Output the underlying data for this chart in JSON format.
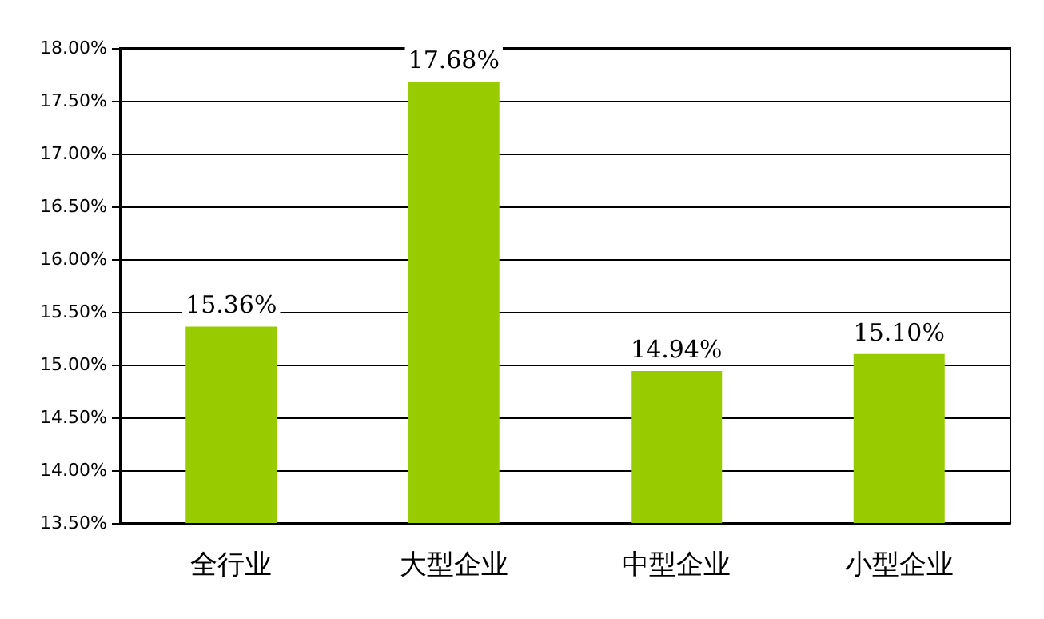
{
  "chart_data": {
    "type": "bar",
    "categories": [
      "全行业",
      "大型企业",
      "中型企业",
      "小型企业"
    ],
    "values": [
      15.36,
      17.68,
      14.94,
      15.1
    ],
    "value_labels": [
      "15.36%",
      "17.68%",
      "14.94%",
      "15.10%"
    ],
    "color": "#99cc00",
    "ylim": [
      13.5,
      18
    ],
    "yticks": [
      {
        "value": 13.5,
        "label": "13.50%"
      },
      {
        "value": 14,
        "label": "14.00%"
      },
      {
        "value": 14.5,
        "label": "14.50%"
      },
      {
        "value": 15,
        "label": "15.00%"
      },
      {
        "value": 15.5,
        "label": "15.50%"
      },
      {
        "value": 16,
        "label": "16.00%"
      },
      {
        "value": 16.5,
        "label": "16.50%"
      },
      {
        "value": 17,
        "label": "17.00%"
      },
      {
        "value": 17.5,
        "label": "17.50%"
      },
      {
        "value": 18,
        "label": "18.00%"
      }
    ],
    "grid": "y"
  }
}
